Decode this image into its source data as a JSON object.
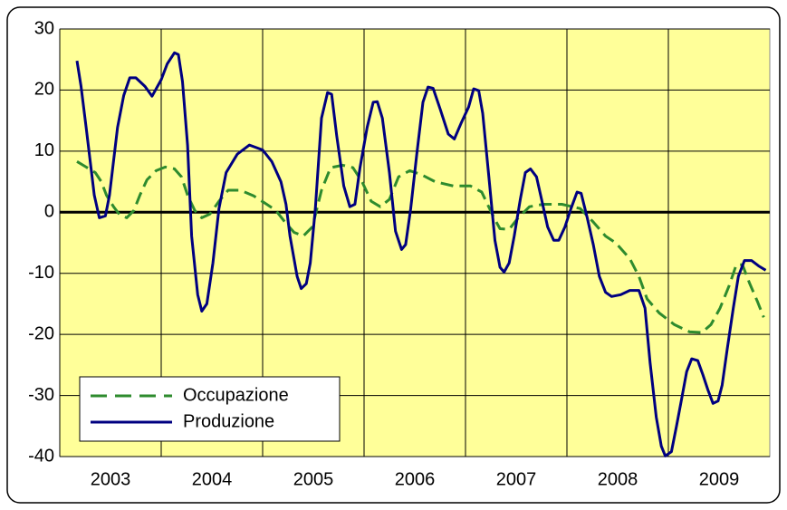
{
  "chart_data": {
    "type": "line",
    "xlim": [
      2003,
      2010
    ],
    "xticks": [
      2003,
      2004,
      2005,
      2006,
      2007,
      2008,
      2009
    ],
    "ylim": [
      -40,
      30
    ],
    "yticks": [
      -40,
      -30,
      -20,
      -10,
      0,
      10,
      20,
      30
    ],
    "grid": true,
    "legend": "lower-left",
    "series": [
      {
        "name": "Occupazione",
        "color": "#2e8b2e",
        "dash": true,
        "x": [
          2003.17,
          2003.26,
          2003.35,
          2003.41,
          2003.46,
          2003.53,
          2003.59,
          2003.66,
          2003.73,
          2003.79,
          2003.86,
          2003.95,
          2004.04,
          2004.13,
          2004.2,
          2004.26,
          2004.33,
          2004.4,
          2004.48,
          2004.57,
          2004.66,
          2004.78,
          2004.91,
          2005.04,
          2005.13,
          2005.22,
          2005.31,
          2005.4,
          2005.49,
          2005.58,
          2005.67,
          2005.79,
          2005.89,
          2005.98,
          2006.07,
          2006.16,
          2006.25,
          2006.34,
          2006.45,
          2006.56,
          2006.7,
          2006.88,
          2007.05,
          2007.16,
          2007.28,
          2007.34,
          2007.43,
          2007.52,
          2007.63,
          2007.77,
          2007.95,
          2008.13,
          2008.26,
          2008.38,
          2008.48,
          2008.62,
          2008.71,
          2008.79,
          2008.91,
          2009.06,
          2009.21,
          2009.33,
          2009.42,
          2009.51,
          2009.6,
          2009.67,
          2009.73,
          2009.8,
          2009.88,
          2009.94
        ],
        "values": [
          8.3,
          7.4,
          6.5,
          5,
          2.8,
          0.9,
          -0.4,
          -0.9,
          0.3,
          2.8,
          5.3,
          6.8,
          7.4,
          7.1,
          5.8,
          2.8,
          0.3,
          -0.9,
          -0.3,
          1.8,
          3.6,
          3.6,
          2.7,
          1.3,
          0.3,
          -1.6,
          -3.3,
          -3.9,
          -2.4,
          3.6,
          7.3,
          7.7,
          7.3,
          5,
          1.8,
          0.9,
          2.1,
          5.8,
          6.8,
          6.2,
          5,
          4.3,
          4.3,
          3.3,
          -0.9,
          -2.7,
          -2.8,
          -0.9,
          0.9,
          1.3,
          1.3,
          0.6,
          -1.6,
          -3.9,
          -5,
          -7.6,
          -10.5,
          -14.2,
          -16.5,
          -18.4,
          -19.6,
          -19.7,
          -18.4,
          -15.7,
          -12,
          -8.6,
          -8.6,
          -11.6,
          -14.7,
          -17.2
        ]
      },
      {
        "name": "Produzione",
        "color": "#000080",
        "dash": false,
        "x": [
          2003.17,
          2003.21,
          2003.26,
          2003.34,
          2003.39,
          2003.45,
          2003.49,
          2003.57,
          2003.63,
          2003.69,
          2003.75,
          2003.84,
          2003.91,
          2004.0,
          2004.06,
          2004.13,
          2004.17,
          2004.21,
          2004.26,
          2004.3,
          2004.36,
          2004.4,
          2004.45,
          2004.51,
          2004.57,
          2004.64,
          2004.75,
          2004.87,
          2005.0,
          2005.09,
          2005.18,
          2005.23,
          2005.27,
          2005.34,
          2005.38,
          2005.43,
          2005.47,
          2005.52,
          2005.58,
          2005.64,
          2005.68,
          2005.73,
          2005.8,
          2005.86,
          2005.91,
          2005.96,
          2006.03,
          2006.09,
          2006.13,
          2006.18,
          2006.25,
          2006.31,
          2006.37,
          2006.41,
          2006.46,
          2006.52,
          2006.58,
          2006.63,
          2006.68,
          2006.75,
          2006.83,
          2006.89,
          2006.96,
          2007.03,
          2007.08,
          2007.13,
          2007.17,
          2007.23,
          2007.29,
          2007.34,
          2007.38,
          2007.43,
          2007.48,
          2007.54,
          2007.59,
          2007.64,
          2007.7,
          2007.75,
          2007.81,
          2007.87,
          2007.92,
          2007.98,
          2008.04,
          2008.1,
          2008.14,
          2008.2,
          2008.26,
          2008.32,
          2008.38,
          2008.44,
          2008.53,
          2008.62,
          2008.71,
          2008.77,
          2008.82,
          2008.88,
          2008.93,
          2008.97,
          2009.03,
          2009.08,
          2009.13,
          2009.18,
          2009.23,
          2009.29,
          2009.34,
          2009.39,
          2009.44,
          2009.49,
          2009.53,
          2009.58,
          2009.64,
          2009.69,
          2009.75,
          2009.82,
          2009.89,
          2009.96
        ],
        "values": [
          24.8,
          20.6,
          13.9,
          2.8,
          -0.9,
          -0.6,
          2.8,
          13.9,
          19.1,
          22,
          22,
          20.6,
          19,
          21.7,
          24.3,
          26.1,
          25.8,
          21.4,
          11,
          -3.9,
          -13.5,
          -16.2,
          -15,
          -8.3,
          0.6,
          6.5,
          9.5,
          11,
          10.2,
          8.3,
          5,
          1.3,
          -3.9,
          -10.5,
          -12.5,
          -11.7,
          -8.3,
          0.6,
          15.4,
          19.6,
          19.3,
          12.5,
          4.3,
          0.9,
          1.3,
          7.3,
          13.9,
          18,
          18.1,
          15.4,
          6.5,
          -3.1,
          -6.1,
          -5.3,
          0.6,
          9.5,
          18,
          20.5,
          20.3,
          16.9,
          12.8,
          12,
          14.7,
          17.2,
          20.2,
          19.9,
          16.2,
          5.8,
          -4.6,
          -9,
          -9.8,
          -8.3,
          -3.9,
          2.1,
          6.5,
          7.1,
          5.8,
          2.1,
          -2.4,
          -4.6,
          -4.6,
          -2.4,
          0.6,
          3.3,
          3.1,
          -0.9,
          -5.3,
          -10.5,
          -13.1,
          -13.8,
          -13.5,
          -12.8,
          -12.8,
          -15.7,
          -24.6,
          -33.5,
          -38.3,
          -39.9,
          -39.2,
          -35,
          -30.6,
          -26.1,
          -24,
          -24.3,
          -26.6,
          -29.1,
          -31.3,
          -30.9,
          -28.3,
          -22.4,
          -15.7,
          -10.5,
          -7.9,
          -7.9,
          -8.8,
          -9.5
        ]
      }
    ]
  }
}
